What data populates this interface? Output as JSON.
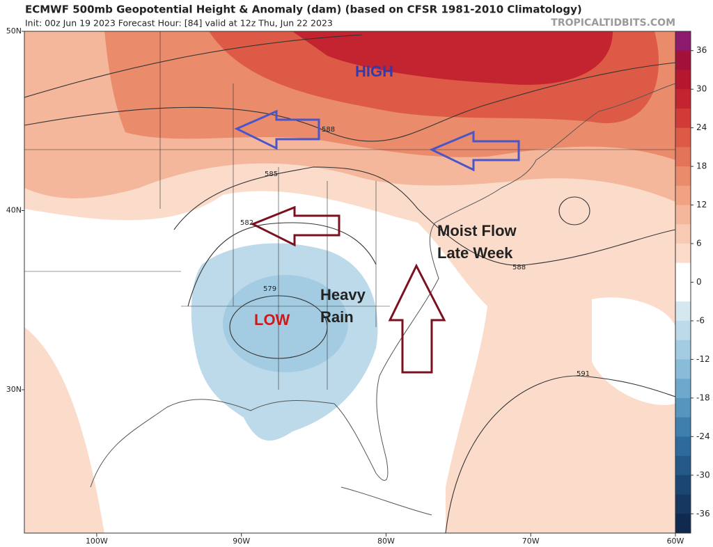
{
  "header": {
    "title": "ECMWF 500mb Geopotential Height & Anomaly (dam) (based on CFSR 1981-2010 Climatology)",
    "subtitle": "Init: 00z Jun 19 2023   Forecast Hour: [84]   valid at 12z Thu, Jun 22 2023",
    "site": "TROPICALTIDBITS.COM"
  },
  "map": {
    "xlim": [
      -105,
      -60
    ],
    "ylim": [
      22,
      50
    ],
    "xticks": [
      {
        "value": -100,
        "label": "100W"
      },
      {
        "value": -90,
        "label": "90W"
      },
      {
        "value": -80,
        "label": "80W"
      },
      {
        "value": -70,
        "label": "70W"
      },
      {
        "value": -60,
        "label": "60W"
      }
    ],
    "yticks": [
      {
        "value": 50,
        "label": "50N"
      },
      {
        "value": 40,
        "label": "40N"
      },
      {
        "value": 30,
        "label": "30N"
      }
    ],
    "contour_labels": [
      588,
      585,
      582,
      579,
      588,
      591
    ],
    "annotations": {
      "high": "HIGH",
      "low": "LOW",
      "heavy_rain": [
        "Heavy",
        "Rain"
      ],
      "moist_flow": [
        "Moist Flow",
        "Late Week"
      ]
    }
  },
  "colorbar": {
    "lim": [
      -39,
      39
    ],
    "ticks": [
      36,
      30,
      24,
      18,
      12,
      6,
      0,
      -6,
      -12,
      -18,
      -24,
      -30,
      -36
    ],
    "colors": [
      "#8e1a6e",
      "#a3103a",
      "#b5172f",
      "#c4242f",
      "#d13a36",
      "#dc5a46",
      "#e47458",
      "#ea8b6c",
      "#f0a283",
      "#f4b79b",
      "#f8cab3",
      "#fbdccb",
      "#ffffff",
      "#ffffff",
      "#d5e8f0",
      "#bcdaea",
      "#a3cce3",
      "#88bcd9",
      "#6ea9cd",
      "#5695be",
      "#3f7fae",
      "#2e6a9b",
      "#235887",
      "#1b4674",
      "#153760",
      "#102a4f"
    ]
  }
}
